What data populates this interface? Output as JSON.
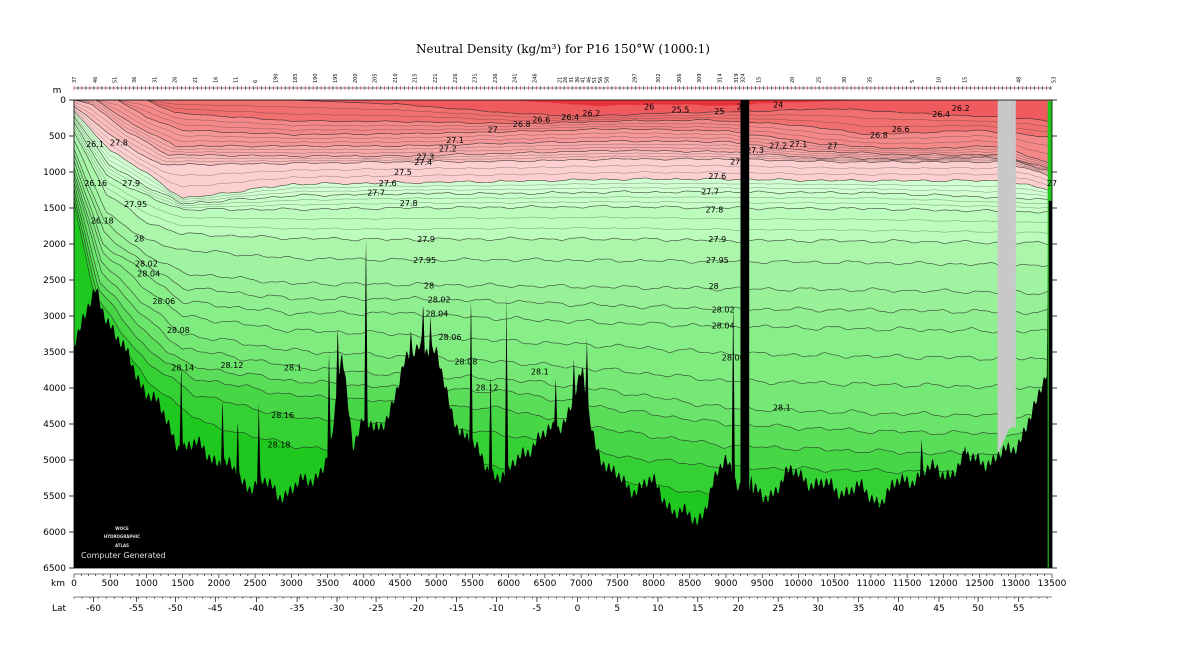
{
  "title": "Neutral Density (kg/m³) for P16 150°W (1000:1)",
  "chart_data": {
    "type": "heatmap",
    "title": "Neutral Density (kg/m³) for P16 150°W (1000:1)",
    "xlabel": "km",
    "ylabel": "m",
    "secondary_xlabel": "Lat",
    "xlim": [
      0,
      13500
    ],
    "ylim": [
      6500,
      0
    ],
    "x_ticks": [
      "0",
      "500",
      "1000",
      "1500",
      "2000",
      "2500",
      "3000",
      "3500",
      "4000",
      "4500",
      "5000",
      "5500",
      "6000",
      "6500",
      "7000",
      "7500",
      "8000",
      "8500",
      "9000",
      "9500",
      "10000",
      "10500",
      "11000",
      "11500",
      "12000",
      "12500",
      "13000",
      "13500"
    ],
    "y_ticks": [
      "0",
      "500",
      "1000",
      "1500",
      "2000",
      "2500",
      "3000",
      "3500",
      "4000",
      "4500",
      "5000",
      "5500",
      "6000",
      "6500"
    ],
    "lat_ticks": [
      {
        "label": "-60",
        "km": 270
      },
      {
        "label": "-55",
        "km": 860
      },
      {
        "label": "-50",
        "km": 1400
      },
      {
        "label": "-45",
        "km": 1950
      },
      {
        "label": "-40",
        "km": 2520
      },
      {
        "label": "-35",
        "km": 3080
      },
      {
        "label": "-30",
        "km": 3630
      },
      {
        "label": "-25",
        "km": 4170
      },
      {
        "label": "-20",
        "km": 4730
      },
      {
        "label": "-15",
        "km": 5280
      },
      {
        "label": "-10",
        "km": 5830
      },
      {
        "label": "-5",
        "km": 6390
      },
      {
        "label": "0",
        "km": 6950
      },
      {
        "label": "5",
        "km": 7500
      },
      {
        "label": "10",
        "km": 8060
      },
      {
        "label": "15",
        "km": 8610
      },
      {
        "label": "20",
        "km": 9170
      },
      {
        "label": "25",
        "km": 9720
      },
      {
        "label": "30",
        "km": 10270
      },
      {
        "label": "35",
        "km": 10830
      },
      {
        "label": "40",
        "km": 11380
      },
      {
        "label": "45",
        "km": 11940
      },
      {
        "label": "50",
        "km": 12480
      },
      {
        "label": "55",
        "km": 13040
      }
    ],
    "station_labels": [
      {
        "label": "37",
        "km": 0
      },
      {
        "label": "46",
        "km": 290
      },
      {
        "label": "51",
        "km": 560
      },
      {
        "label": "36",
        "km": 830
      },
      {
        "label": "31",
        "km": 1110
      },
      {
        "label": "26",
        "km": 1390
      },
      {
        "label": "21",
        "km": 1670
      },
      {
        "label": "16",
        "km": 1950
      },
      {
        "label": "11",
        "km": 2230
      },
      {
        "label": "6",
        "km": 2500
      },
      {
        "label": "190",
        "km": 2780
      },
      {
        "label": "185",
        "km": 3050
      },
      {
        "label": "190",
        "km": 3330
      },
      {
        "label": "195",
        "km": 3600
      },
      {
        "label": "200",
        "km": 3880
      },
      {
        "label": "205",
        "km": 4150
      },
      {
        "label": "210",
        "km": 4430
      },
      {
        "label": "215",
        "km": 4700
      },
      {
        "label": "221",
        "km": 4980
      },
      {
        "label": "226",
        "km": 5260
      },
      {
        "label": "231",
        "km": 5530
      },
      {
        "label": "236",
        "km": 5810
      },
      {
        "label": "241",
        "km": 6080
      },
      {
        "label": "246",
        "km": 6360
      },
      {
        "label": "21",
        "km": 6700
      },
      {
        "label": "26",
        "km": 6780
      },
      {
        "label": "31",
        "km": 6860
      },
      {
        "label": "36",
        "km": 6940
      },
      {
        "label": "41",
        "km": 7020
      },
      {
        "label": "46",
        "km": 7100
      },
      {
        "label": "51",
        "km": 7180
      },
      {
        "label": "56",
        "km": 7260
      },
      {
        "label": "58",
        "km": 7350
      },
      {
        "label": "297",
        "km": 7740
      },
      {
        "label": "302",
        "km": 8060
      },
      {
        "label": "306",
        "km": 8350
      },
      {
        "label": "309",
        "km": 8630
      },
      {
        "label": "314",
        "km": 8910
      },
      {
        "label": "319",
        "km": 9140
      },
      {
        "label": "324",
        "km": 9230
      },
      {
        "label": "15",
        "km": 9450
      },
      {
        "label": "20",
        "km": 9910
      },
      {
        "label": "25",
        "km": 10280
      },
      {
        "label": "30",
        "km": 10630
      },
      {
        "label": "35",
        "km": 10980
      },
      {
        "label": "5",
        "km": 11570
      },
      {
        "label": "10",
        "km": 11930
      },
      {
        "label": "15",
        "km": 12290
      },
      {
        "label": "48",
        "km": 13040
      },
      {
        "label": "53",
        "km": 13520
      }
    ],
    "color_bands": [
      {
        "range": "< 26",
        "color": "#e8323a"
      },
      {
        "range": "26 - 26.8",
        "color": "#f06a6a"
      },
      {
        "range": "26.8 - 27.3",
        "color": "#f79090"
      },
      {
        "range": "27.3 - 27.6",
        "color": "#fbbcbc"
      },
      {
        "range": "27.6 - 27.9",
        "color": "#c8ffc8"
      },
      {
        "range": "27.9 - 28.06",
        "color": "#a6f3a6"
      },
      {
        "range": "28.06 - 28.12",
        "color": "#86ee86"
      },
      {
        "range": "28.12 - 28.18",
        "color": "#56e256"
      },
      {
        "range": "> 28.18",
        "color": "#20cc20"
      }
    ],
    "contour_labels": [
      {
        "text": "26.1",
        "km": 290,
        "depth": 620
      },
      {
        "text": "27.8",
        "km": 620,
        "depth": 600
      },
      {
        "text": "26.16",
        "km": 300,
        "depth": 1160
      },
      {
        "text": "27.9",
        "km": 790,
        "depth": 1160
      },
      {
        "text": "27.95",
        "km": 850,
        "depth": 1450
      },
      {
        "text": "26.18",
        "km": 390,
        "depth": 1680
      },
      {
        "text": "28",
        "km": 900,
        "depth": 1930
      },
      {
        "text": "28.02",
        "km": 1000,
        "depth": 2280
      },
      {
        "text": "28.04",
        "km": 1030,
        "depth": 2420
      },
      {
        "text": "28.06",
        "km": 1240,
        "depth": 2800
      },
      {
        "text": "28.08",
        "km": 1440,
        "depth": 3200
      },
      {
        "text": "28.14",
        "km": 1500,
        "depth": 3720
      },
      {
        "text": "28.12",
        "km": 2180,
        "depth": 3690
      },
      {
        "text": "28.1",
        "km": 3020,
        "depth": 3720
      },
      {
        "text": "28.16",
        "km": 2880,
        "depth": 4380
      },
      {
        "text": "28.18",
        "km": 2830,
        "depth": 4790
      },
      {
        "text": "27.1",
        "km": 5260,
        "depth": 560
      },
      {
        "text": "27.2",
        "km": 5160,
        "depth": 680
      },
      {
        "text": "27.3",
        "km": 4850,
        "depth": 790
      },
      {
        "text": "27.4",
        "km": 4820,
        "depth": 870
      },
      {
        "text": "27.5",
        "km": 4540,
        "depth": 1010
      },
      {
        "text": "27.6",
        "km": 4330,
        "depth": 1160
      },
      {
        "text": "27.7",
        "km": 4170,
        "depth": 1290
      },
      {
        "text": "27.8",
        "km": 4620,
        "depth": 1440
      },
      {
        "text": "27.9",
        "km": 4860,
        "depth": 1940
      },
      {
        "text": "27.95",
        "km": 4840,
        "depth": 2230
      },
      {
        "text": "28",
        "km": 4900,
        "depth": 2580
      },
      {
        "text": "28.02",
        "km": 5040,
        "depth": 2780
      },
      {
        "text": "28.04",
        "km": 5010,
        "depth": 2970
      },
      {
        "text": "28.06",
        "km": 5190,
        "depth": 3300
      },
      {
        "text": "28.08",
        "km": 5410,
        "depth": 3640
      },
      {
        "text": "28.12",
        "km": 5700,
        "depth": 4000
      },
      {
        "text": "28.1",
        "km": 6430,
        "depth": 3780
      },
      {
        "text": "27",
        "km": 5780,
        "depth": 420
      },
      {
        "text": "26.8",
        "km": 6180,
        "depth": 340
      },
      {
        "text": "26.6",
        "km": 6450,
        "depth": 280
      },
      {
        "text": "26.4",
        "km": 6850,
        "depth": 240
      },
      {
        "text": "26.2",
        "km": 7140,
        "depth": 190
      },
      {
        "text": "26",
        "km": 7940,
        "depth": 100
      },
      {
        "text": "25.5",
        "km": 8370,
        "depth": 140
      },
      {
        "text": "25",
        "km": 8910,
        "depth": 160
      },
      {
        "text": "25",
        "km": 9220,
        "depth": 100
      },
      {
        "text": "24",
        "km": 9720,
        "depth": 70
      },
      {
        "text": "27.6",
        "km": 8880,
        "depth": 1060
      },
      {
        "text": "27.7",
        "km": 8780,
        "depth": 1280
      },
      {
        "text": "27.8",
        "km": 8840,
        "depth": 1530
      },
      {
        "text": "27.9",
        "km": 8880,
        "depth": 1940
      },
      {
        "text": "27.95",
        "km": 8880,
        "depth": 2230
      },
      {
        "text": "28",
        "km": 8830,
        "depth": 2590
      },
      {
        "text": "28.02",
        "km": 8960,
        "depth": 2920
      },
      {
        "text": "28.04",
        "km": 8960,
        "depth": 3140
      },
      {
        "text": "28.06",
        "km": 9100,
        "depth": 3580
      },
      {
        "text": "28.1",
        "km": 9770,
        "depth": 4280
      },
      {
        "text": "27.1",
        "km": 9180,
        "depth": 860
      },
      {
        "text": "27.2",
        "km": 9720,
        "depth": 640
      },
      {
        "text": "27.1",
        "km": 10000,
        "depth": 620
      },
      {
        "text": "27",
        "km": 10470,
        "depth": 640
      },
      {
        "text": "26.8",
        "km": 11110,
        "depth": 490
      },
      {
        "text": "26.6",
        "km": 11410,
        "depth": 410
      },
      {
        "text": "26.4",
        "km": 11970,
        "depth": 200
      },
      {
        "text": "26.2",
        "km": 12240,
        "depth": 120
      },
      {
        "text": "27",
        "km": 13500,
        "depth": 1160
      },
      {
        "text": "27.3",
        "km": 9400,
        "depth": 700
      }
    ]
  },
  "credit": {
    "logo_line1": "WOCE",
    "logo_line2": "HYDROGRAPHIC",
    "logo_line3": "ATLAS",
    "generated": "Computer Generated"
  },
  "colors": {
    "bottom_fill": "#000000",
    "no_data_fill": "#c8c8c8",
    "contour_line": "#222222"
  }
}
